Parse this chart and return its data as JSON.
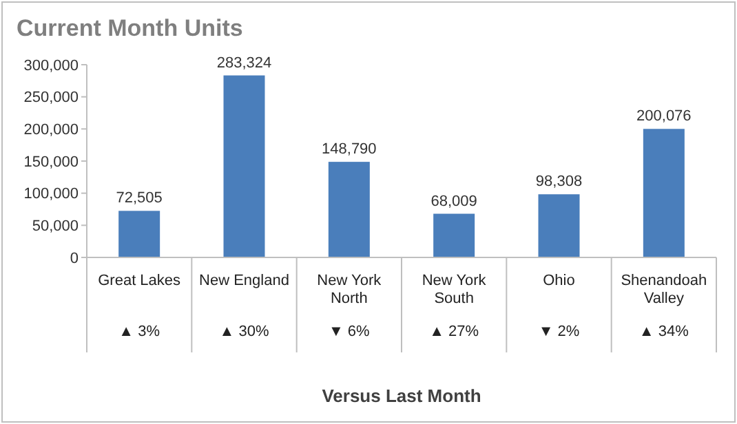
{
  "chart_data": {
    "type": "bar",
    "title": "Current Month Units",
    "xlabel": "Versus Last Month",
    "categories": [
      "Great Lakes",
      "New England",
      "New York North",
      "New York South",
      "Ohio",
      "Shenandoah Valley"
    ],
    "values": [
      72505,
      283324,
      148790,
      68009,
      98308,
      200076
    ],
    "color": "#4a7ebb",
    "ylim": [
      0,
      300000
    ],
    "yticks": [
      {
        "value": 0,
        "label": "0"
      },
      {
        "value": 50000,
        "label": "50,000"
      },
      {
        "value": 100000,
        "label": "100,000"
      },
      {
        "value": 150000,
        "label": "150,000"
      },
      {
        "value": 200000,
        "label": "200,000"
      },
      {
        "value": 250000,
        "label": "250,000"
      },
      {
        "value": 300000,
        "label": "300,000"
      }
    ],
    "value_labels": [
      "72,505",
      "283,324",
      "148,790",
      "68,009",
      "98,308",
      "200,076"
    ],
    "annotations": [
      "▲ 3%",
      "▲ 30%",
      "▼ 6%",
      "▲ 27%",
      "▼ 2%",
      "▲ 34%"
    ],
    "grid": false
  }
}
